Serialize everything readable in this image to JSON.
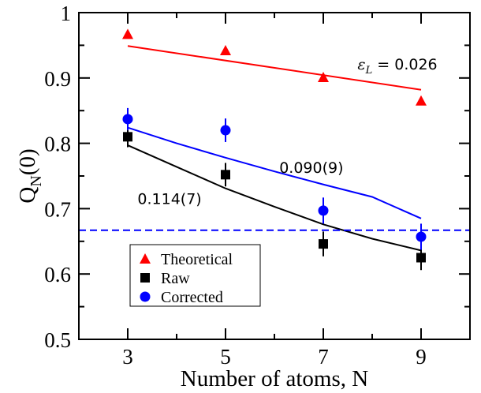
{
  "chart_data": {
    "type": "scatter",
    "xlabel": "Number of atoms, N",
    "ylabel_main": "Q",
    "ylabel_sub": "N",
    "ylabel_tail": "(0)",
    "xlim": [
      2,
      10
    ],
    "ylim": [
      0.5,
      1.0
    ],
    "xticks": [
      3,
      5,
      7,
      9
    ],
    "xtick_labels": [
      "3",
      "5",
      "7",
      "9"
    ],
    "yticks": [
      0.5,
      0.6,
      0.7,
      0.8,
      0.9,
      1.0
    ],
    "ytick_labels": [
      "0.5",
      "0.6",
      "0.7",
      "0.8",
      "0.9",
      "1"
    ],
    "grid": false,
    "legend_position": "bottom-left",
    "series": [
      {
        "name": "Theoretical",
        "marker": "triangle",
        "color": "#ff0000",
        "x": [
          3,
          5,
          7,
          9
        ],
        "y": [
          0.967,
          0.942,
          0.901,
          0.865
        ],
        "yerr": [
          0,
          0,
          0,
          0
        ]
      },
      {
        "name": "Raw",
        "marker": "square",
        "color": "#000000",
        "x": [
          3,
          5,
          7,
          9
        ],
        "y": [
          0.81,
          0.752,
          0.646,
          0.625
        ],
        "yerr": [
          0.016,
          0.018,
          0.019,
          0.019
        ]
      },
      {
        "name": "Corrected",
        "marker": "circle",
        "color": "#0000ff",
        "x": [
          3,
          5,
          7,
          9
        ],
        "y": [
          0.837,
          0.82,
          0.697,
          0.657
        ],
        "yerr": [
          0.017,
          0.018,
          0.02,
          0.02
        ]
      }
    ],
    "fit_lines": [
      {
        "color": "#ff0000",
        "x": [
          3,
          9
        ],
        "y": [
          0.949,
          0.882
        ]
      },
      {
        "color": "#0000ff",
        "x": [
          3,
          4,
          5,
          6,
          7,
          8,
          9
        ],
        "y": [
          0.824,
          0.8,
          0.778,
          0.757,
          0.737,
          0.718,
          0.685
        ]
      },
      {
        "color": "#000000",
        "x": [
          3,
          4,
          5,
          6,
          7,
          8,
          9
        ],
        "y": [
          0.797,
          0.764,
          0.731,
          0.703,
          0.676,
          0.654,
          0.636
        ]
      }
    ],
    "reference_line": {
      "y": 0.667,
      "color": "#0000ff",
      "style": "dashed"
    },
    "annotations": [
      {
        "text_main": "ε",
        "text_sub": "L",
        "text_tail": " = 0.026",
        "x": 7.7,
        "y": 0.913
      },
      {
        "text": "0.090(9)",
        "x": 6.1,
        "y": 0.755
      },
      {
        "text": "0.114(7)",
        "x": 3.2,
        "y": 0.707
      }
    ]
  }
}
